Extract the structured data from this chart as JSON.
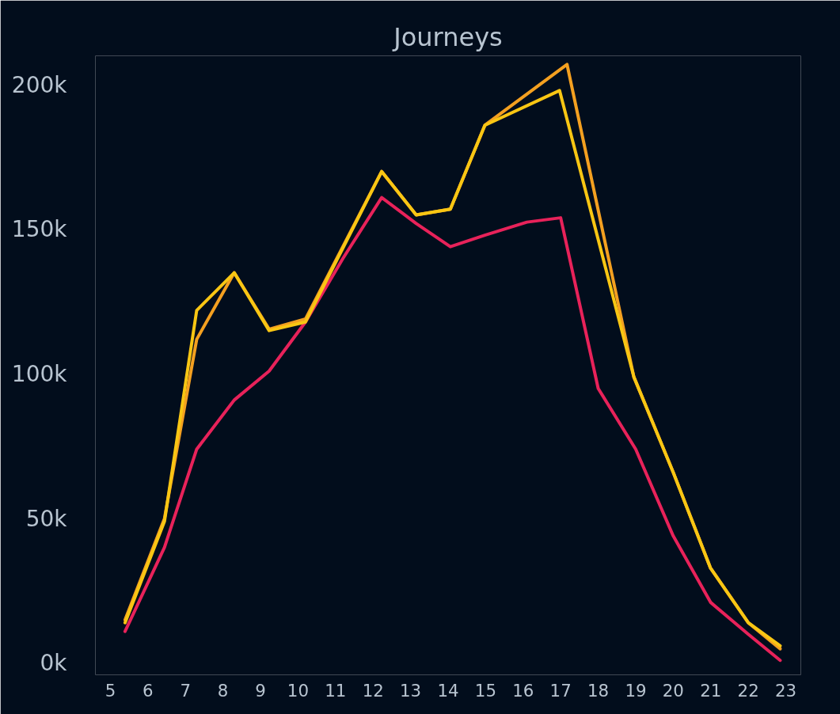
{
  "chart_data": {
    "type": "line",
    "title": "Journeys",
    "xlim": [
      4.6,
      23.4
    ],
    "xticks": [
      5,
      6,
      7,
      8,
      9,
      10,
      11,
      12,
      13,
      14,
      15,
      16,
      17,
      18,
      19,
      20,
      21,
      22,
      23
    ],
    "ylim": [
      -4000,
      210000
    ],
    "yticks": [
      {
        "value": 0,
        "label": "0k"
      },
      {
        "value": 50000,
        "label": "50k"
      },
      {
        "value": 100000,
        "label": "100k"
      },
      {
        "value": 150000,
        "label": "150k"
      },
      {
        "value": 200000,
        "label": "200k"
      }
    ],
    "grid": false,
    "line_style": "solid",
    "series": [
      {
        "color": "#e8225a",
        "x": [
          5.39,
          6.44,
          7.3,
          8.3,
          9.23,
          10.2,
          11.2,
          12.23,
          13.15,
          14.06,
          14.98,
          16.1,
          17,
          18,
          19,
          20,
          21,
          22,
          22.85
        ],
        "values": [
          11000,
          40000,
          74000,
          91000,
          101000,
          118000,
          140000,
          161000,
          152000,
          144000,
          148000,
          152500,
          154000,
          95000,
          74000,
          44000,
          21000,
          10000,
          1000
        ]
      },
      {
        "color": "#f4a020",
        "x": [
          5.39,
          6.44,
          7.3,
          8.3,
          9.23,
          10.2,
          12.23,
          13.15,
          14.06,
          14.98,
          17.17,
          18.95,
          20,
          20.99,
          22,
          22.85
        ],
        "values": [
          15000,
          50000,
          112000,
          135000,
          115500,
          119000,
          170000,
          155000,
          157000,
          186000,
          207000,
          99000,
          66000,
          33000,
          14000,
          5000
        ]
      },
      {
        "color": "#f9c613",
        "x": [
          5.39,
          6.44,
          7.3,
          8.3,
          9.23,
          10.2,
          12.23,
          13.15,
          14.06,
          14.98,
          16.97,
          18.95,
          20,
          20.99,
          22,
          22.85
        ],
        "values": [
          14000,
          49000,
          122000,
          135000,
          115000,
          118000,
          170000,
          155000,
          157000,
          186000,
          198000,
          99000,
          66000,
          33000,
          14000,
          6000
        ]
      }
    ]
  }
}
